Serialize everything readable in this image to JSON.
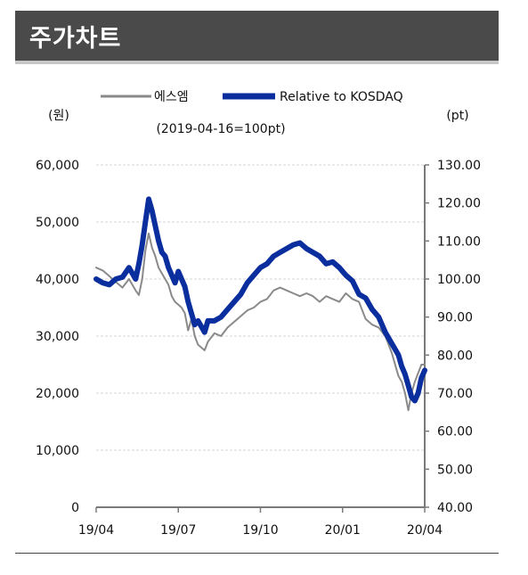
{
  "header": {
    "title": "주가차트"
  },
  "chart_data": {
    "type": "line",
    "legend": {
      "placement": "top-center",
      "note": "(2019-04-16=100pt)"
    },
    "y_left": {
      "unit_label": "(원)",
      "range": [
        0,
        60000
      ],
      "ticks": [
        "0",
        "10,000",
        "20,000",
        "30,000",
        "40,000",
        "50,000",
        "60,000"
      ]
    },
    "y_right": {
      "unit_label": "(pt)",
      "range": [
        40,
        130
      ],
      "ticks": [
        "40.00",
        "50.00",
        "60.00",
        "70.00",
        "80.00",
        "90.00",
        "100.00",
        "110.00",
        "120.00",
        "130.00"
      ]
    },
    "x": {
      "range": [
        0,
        1
      ],
      "ticks": [
        "19/04",
        "19/07",
        "19/10",
        "20/01",
        "20/04"
      ],
      "tick_positions": [
        0,
        0.25,
        0.5,
        0.75,
        1.0
      ]
    },
    "grid": true,
    "series": [
      {
        "name": "에스엠",
        "axis": "left",
        "color": "#8a8a8a",
        "values": [
          [
            0,
            42000
          ],
          [
            0.02,
            41500
          ],
          [
            0.04,
            40500
          ],
          [
            0.06,
            39500
          ],
          [
            0.08,
            38500
          ],
          [
            0.1,
            40000
          ],
          [
            0.12,
            38000
          ],
          [
            0.13,
            37200
          ],
          [
            0.14,
            40000
          ],
          [
            0.15,
            45000
          ],
          [
            0.16,
            48000
          ],
          [
            0.17,
            45500
          ],
          [
            0.18,
            44000
          ],
          [
            0.19,
            42000
          ],
          [
            0.2,
            41000
          ],
          [
            0.21,
            40000
          ],
          [
            0.22,
            39000
          ],
          [
            0.23,
            37000
          ],
          [
            0.24,
            36000
          ],
          [
            0.25,
            35500
          ],
          [
            0.26,
            35000
          ],
          [
            0.27,
            34000
          ],
          [
            0.28,
            31000
          ],
          [
            0.29,
            33000
          ],
          [
            0.3,
            30000
          ],
          [
            0.31,
            28500
          ],
          [
            0.32,
            28000
          ],
          [
            0.33,
            27500
          ],
          [
            0.34,
            29000
          ],
          [
            0.36,
            30500
          ],
          [
            0.38,
            30000
          ],
          [
            0.4,
            31500
          ],
          [
            0.42,
            32500
          ],
          [
            0.44,
            33500
          ],
          [
            0.46,
            34500
          ],
          [
            0.48,
            35000
          ],
          [
            0.5,
            36000
          ],
          [
            0.52,
            36500
          ],
          [
            0.54,
            38000
          ],
          [
            0.56,
            38500
          ],
          [
            0.58,
            38000
          ],
          [
            0.6,
            37500
          ],
          [
            0.62,
            37000
          ],
          [
            0.64,
            37500
          ],
          [
            0.66,
            37000
          ],
          [
            0.68,
            36000
          ],
          [
            0.7,
            37000
          ],
          [
            0.72,
            36500
          ],
          [
            0.74,
            36000
          ],
          [
            0.76,
            37500
          ],
          [
            0.78,
            36500
          ],
          [
            0.8,
            36000
          ],
          [
            0.82,
            33000
          ],
          [
            0.84,
            32000
          ],
          [
            0.86,
            31500
          ],
          [
            0.88,
            30000
          ],
          [
            0.9,
            27000
          ],
          [
            0.92,
            23000
          ],
          [
            0.93,
            22000
          ],
          [
            0.94,
            20000
          ],
          [
            0.95,
            17000
          ],
          [
            0.96,
            20000
          ],
          [
            0.97,
            22000
          ],
          [
            0.98,
            23500
          ],
          [
            0.99,
            25000
          ],
          [
            1.0,
            25000
          ]
        ]
      },
      {
        "name": "Relative to  KOSDAQ",
        "axis": "right",
        "color": "#0a2e9e",
        "values": [
          [
            0,
            100
          ],
          [
            0.02,
            99
          ],
          [
            0.04,
            98.5
          ],
          [
            0.06,
            100
          ],
          [
            0.08,
            100.5
          ],
          [
            0.1,
            103
          ],
          [
            0.12,
            100
          ],
          [
            0.13,
            104
          ],
          [
            0.14,
            109
          ],
          [
            0.15,
            115
          ],
          [
            0.16,
            121
          ],
          [
            0.17,
            118
          ],
          [
            0.18,
            114
          ],
          [
            0.19,
            110
          ],
          [
            0.2,
            107
          ],
          [
            0.21,
            106
          ],
          [
            0.22,
            103
          ],
          [
            0.23,
            101
          ],
          [
            0.24,
            99
          ],
          [
            0.25,
            102
          ],
          [
            0.26,
            100
          ],
          [
            0.27,
            98
          ],
          [
            0.28,
            94
          ],
          [
            0.29,
            91
          ],
          [
            0.3,
            88
          ],
          [
            0.31,
            89
          ],
          [
            0.32,
            87.5
          ],
          [
            0.33,
            86
          ],
          [
            0.34,
            89
          ],
          [
            0.36,
            89
          ],
          [
            0.38,
            90
          ],
          [
            0.4,
            92
          ],
          [
            0.42,
            94
          ],
          [
            0.44,
            96
          ],
          [
            0.46,
            99
          ],
          [
            0.48,
            101
          ],
          [
            0.5,
            103
          ],
          [
            0.52,
            104
          ],
          [
            0.54,
            106
          ],
          [
            0.56,
            107
          ],
          [
            0.58,
            108
          ],
          [
            0.6,
            109
          ],
          [
            0.62,
            109.5
          ],
          [
            0.64,
            108
          ],
          [
            0.66,
            107
          ],
          [
            0.68,
            106
          ],
          [
            0.7,
            104
          ],
          [
            0.72,
            104.5
          ],
          [
            0.74,
            103
          ],
          [
            0.76,
            101
          ],
          [
            0.78,
            99.5
          ],
          [
            0.8,
            96
          ],
          [
            0.82,
            95
          ],
          [
            0.84,
            92
          ],
          [
            0.86,
            90
          ],
          [
            0.88,
            86
          ],
          [
            0.9,
            83
          ],
          [
            0.92,
            80
          ],
          [
            0.93,
            77
          ],
          [
            0.94,
            75
          ],
          [
            0.95,
            72
          ],
          [
            0.96,
            69
          ],
          [
            0.97,
            68
          ],
          [
            0.98,
            70
          ],
          [
            0.99,
            74
          ],
          [
            1.0,
            76
          ]
        ]
      }
    ]
  }
}
